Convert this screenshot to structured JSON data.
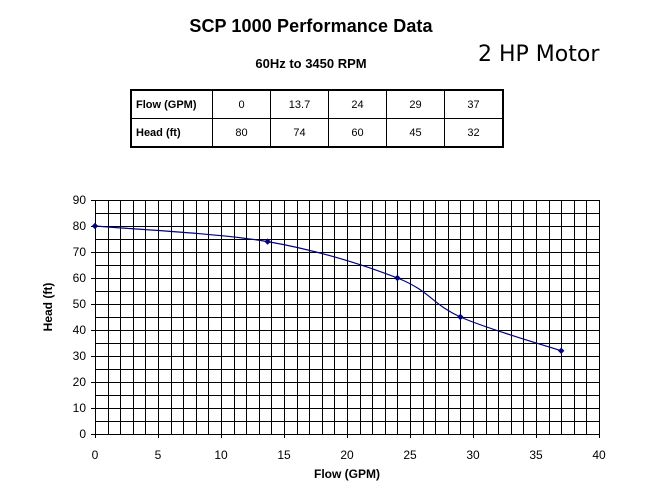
{
  "header": {
    "title": "SCP 1000 Performance Data",
    "subtitle": "60Hz to 3450 RPM",
    "motor": "2 HP Motor"
  },
  "table": {
    "rows": [
      {
        "label": "Flow (GPM)",
        "values": [
          "0",
          "13.7",
          "24",
          "29",
          "37"
        ]
      },
      {
        "label": "Head (ft)",
        "values": [
          "80",
          "74",
          "60",
          "45",
          "32"
        ]
      }
    ]
  },
  "chart_data": {
    "type": "line",
    "title": "",
    "xlabel": "Flow (GPM)",
    "ylabel": "Head (ft)",
    "xlim": [
      0,
      40
    ],
    "ylim": [
      0,
      90
    ],
    "xticks": [
      0,
      5,
      10,
      15,
      20,
      25,
      30,
      35,
      40
    ],
    "yticks": [
      0,
      10,
      20,
      30,
      40,
      50,
      60,
      70,
      80,
      90
    ],
    "minor_x_step": 1,
    "minor_y_step": 5,
    "grid": true,
    "colors": {
      "series": "#000080",
      "grid": "#000000"
    },
    "series": [
      {
        "name": "Head (ft)",
        "x": [
          0,
          13.7,
          24,
          29,
          37
        ],
        "y": [
          80,
          74,
          60,
          45,
          32
        ]
      }
    ]
  }
}
